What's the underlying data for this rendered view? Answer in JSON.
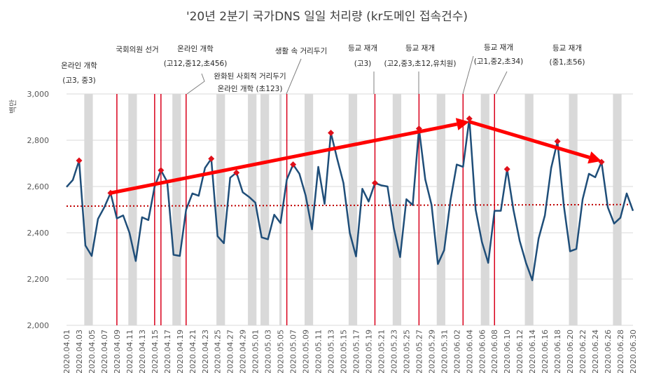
{
  "chart_data": {
    "type": "line",
    "title": "'20년 2분기 국가DNS 일일 처리량 (kr도메인 접속건수)",
    "ylabel": "백만",
    "xlabel": "",
    "ylim": [
      2000,
      3000
    ],
    "yticks": [
      2000,
      2200,
      2400,
      2600,
      2800,
      3000
    ],
    "ytick_labels": [
      "2,000",
      "2,200",
      "2,400",
      "2,600",
      "2,800",
      "3,000"
    ],
    "colors": {
      "line": "#1f4e79",
      "marker": "#e0101a",
      "event_line": "#d9001b",
      "trend": "#c00000",
      "arrow": "#ff0000",
      "weekend": "#d9d9d9",
      "grid": "#d9d9d9"
    },
    "x": [
      "2020.04.01",
      "2020.04.02",
      "2020.04.03",
      "2020.04.04",
      "2020.04.05",
      "2020.04.06",
      "2020.04.07",
      "2020.04.08",
      "2020.04.09",
      "2020.04.10",
      "2020.04.11",
      "2020.04.12",
      "2020.04.13",
      "2020.04.14",
      "2020.04.15",
      "2020.04.16",
      "2020.04.17",
      "2020.04.18",
      "2020.04.19",
      "2020.04.20",
      "2020.04.21",
      "2020.04.22",
      "2020.04.23",
      "2020.04.24",
      "2020.04.25",
      "2020.04.26",
      "2020.04.27",
      "2020.04.28",
      "2020.04.29",
      "2020.04.30",
      "2020.05.01",
      "2020.05.02",
      "2020.05.03",
      "2020.05.04",
      "2020.05.05",
      "2020.05.06",
      "2020.05.07",
      "2020.05.08",
      "2020.05.09",
      "2020.05.10",
      "2020.05.11",
      "2020.05.12",
      "2020.05.13",
      "2020.05.14",
      "2020.05.15",
      "2020.05.16",
      "2020.05.17",
      "2020.05.18",
      "2020.05.19",
      "2020.05.20",
      "2020.05.21",
      "2020.05.22",
      "2020.05.23",
      "2020.05.24",
      "2020.05.25",
      "2020.05.26",
      "2020.05.27",
      "2020.05.28",
      "2020.05.29",
      "2020.05.30",
      "2020.05.31",
      "2020.06.01",
      "2020.06.02",
      "2020.06.03",
      "2020.06.04",
      "2020.06.05",
      "2020.06.06",
      "2020.06.07",
      "2020.06.08",
      "2020.06.09",
      "2020.06.10",
      "2020.06.11",
      "2020.06.12",
      "2020.06.13",
      "2020.06.14",
      "2020.06.15",
      "2020.06.16",
      "2020.06.17",
      "2020.06.18",
      "2020.06.19",
      "2020.06.20",
      "2020.06.21",
      "2020.06.22",
      "2020.06.23",
      "2020.06.24",
      "2020.06.25",
      "2020.06.26",
      "2020.06.27",
      "2020.06.28",
      "2020.06.29",
      "2020.06.30"
    ],
    "x_tick_labels": [
      "2020.04.01",
      "2020.04.03",
      "2020.04.05",
      "2020.04.07",
      "2020.04.09",
      "2020.04.11",
      "2020.04.13",
      "2020.04.15",
      "2020.04.17",
      "2020.04.19",
      "2020.04.21",
      "2020.04.23",
      "2020.04.25",
      "2020.04.27",
      "2020.04.29",
      "2020.05.01",
      "2020.05.03",
      "2020.05.05",
      "2020.05.07",
      "2020.05.09",
      "2020.05.11",
      "2020.05.13",
      "2020.05.15",
      "2020.05.17",
      "2020.05.19",
      "2020.05.21",
      "2020.05.23",
      "2020.05.25",
      "2020.05.27",
      "2020.05.29",
      "2020.05.31",
      "2020.06.02",
      "2020.06.04",
      "2020.06.06",
      "2020.06.08",
      "2020.06.10",
      "2020.06.12",
      "2020.06.14",
      "2020.06.16",
      "2020.06.18",
      "2020.06.20",
      "2020.06.22",
      "2020.06.24",
      "2020.06.26",
      "2020.06.28",
      "2020.06.30"
    ],
    "series": [
      {
        "name": "일일 처리량",
        "values": [
          2598,
          2628,
          2712,
          2345,
          2300,
          2460,
          2510,
          2572,
          2462,
          2475,
          2400,
          2278,
          2467,
          2455,
          2600,
          2670,
          2620,
          2305,
          2300,
          2500,
          2570,
          2560,
          2680,
          2720,
          2385,
          2355,
          2638,
          2660,
          2575,
          2555,
          2530,
          2380,
          2372,
          2478,
          2442,
          2630,
          2695,
          2655,
          2560,
          2415,
          2685,
          2525,
          2832,
          2720,
          2615,
          2400,
          2298,
          2590,
          2535,
          2615,
          2605,
          2600,
          2420,
          2295,
          2545,
          2520,
          2850,
          2630,
          2520,
          2265,
          2325,
          2540,
          2695,
          2685,
          2893,
          2500,
          2360,
          2270,
          2495,
          2495,
          2675,
          2500,
          2365,
          2270,
          2195,
          2375,
          2475,
          2680,
          2795,
          2520,
          2320,
          2330,
          2545,
          2655,
          2640,
          2706,
          2510,
          2440,
          2465,
          2570,
          2495
        ]
      }
    ],
    "highlight_points": [
      "2020.04.03",
      "2020.04.08",
      "2020.04.16",
      "2020.04.24",
      "2020.04.28",
      "2020.05.07",
      "2020.05.13",
      "2020.05.20",
      "2020.05.27",
      "2020.06.04",
      "2020.06.10",
      "2020.06.18",
      "2020.06.25"
    ],
    "weekend_bands": [
      [
        "2020.04.04",
        "2020.04.05"
      ],
      [
        "2020.04.11",
        "2020.04.12"
      ],
      [
        "2020.04.18",
        "2020.04.19"
      ],
      [
        "2020.04.25",
        "2020.04.26"
      ],
      [
        "2020.04.30",
        "2020.05.01"
      ],
      [
        "2020.05.02",
        "2020.05.03"
      ],
      [
        "2020.05.05",
        "2020.05.05"
      ],
      [
        "2020.05.09",
        "2020.05.10"
      ],
      [
        "2020.05.16",
        "2020.05.17"
      ],
      [
        "2020.05.23",
        "2020.05.24"
      ],
      [
        "2020.05.30",
        "2020.05.31"
      ],
      [
        "2020.06.06",
        "2020.06.07"
      ],
      [
        "2020.06.13",
        "2020.06.14"
      ],
      [
        "2020.06.20",
        "2020.06.21"
      ],
      [
        "2020.06.27",
        "2020.06.28"
      ]
    ],
    "trendline": {
      "start": 2515,
      "end": 2522
    },
    "trend_arrows": [
      {
        "from": {
          "x": "2020.04.08",
          "y": 2572
        },
        "to": {
          "x": "2020.06.04",
          "y": 2880
        }
      },
      {
        "from": {
          "x": "2020.06.04",
          "y": 2880
        },
        "to": {
          "x": "2020.06.25",
          "y": 2710
        }
      }
    ],
    "event_lines": [
      {
        "x": "2020.04.09",
        "label_lines": [
          "온라인 개학",
          "(고3, 중3)"
        ]
      },
      {
        "x": "2020.04.15",
        "label_lines": [
          "국회의원 선거"
        ]
      },
      {
        "x": "2020.04.16",
        "label_lines": [
          "온라인 개학",
          "(고12,중12,초456)"
        ]
      },
      {
        "x": "2020.04.20",
        "label_lines": [
          "완화된 사회적 거리두기",
          "온라인 개학 (초123)"
        ]
      },
      {
        "x": "2020.05.06",
        "label_lines": [
          "생활 속 거리두기"
        ]
      },
      {
        "x": "2020.05.20",
        "label_lines": [
          "등교 재개",
          "(고3)"
        ]
      },
      {
        "x": "2020.05.27",
        "label_lines": [
          "등교 재개",
          "(고2,중3,초12,유치원)"
        ]
      },
      {
        "x": "2020.06.03",
        "label_lines": [
          "등교 재개",
          "(고1,중2,초34)"
        ]
      },
      {
        "x": "2020.06.08",
        "label_lines": [
          "등교 재개",
          "(중1,초56)"
        ]
      }
    ]
  }
}
